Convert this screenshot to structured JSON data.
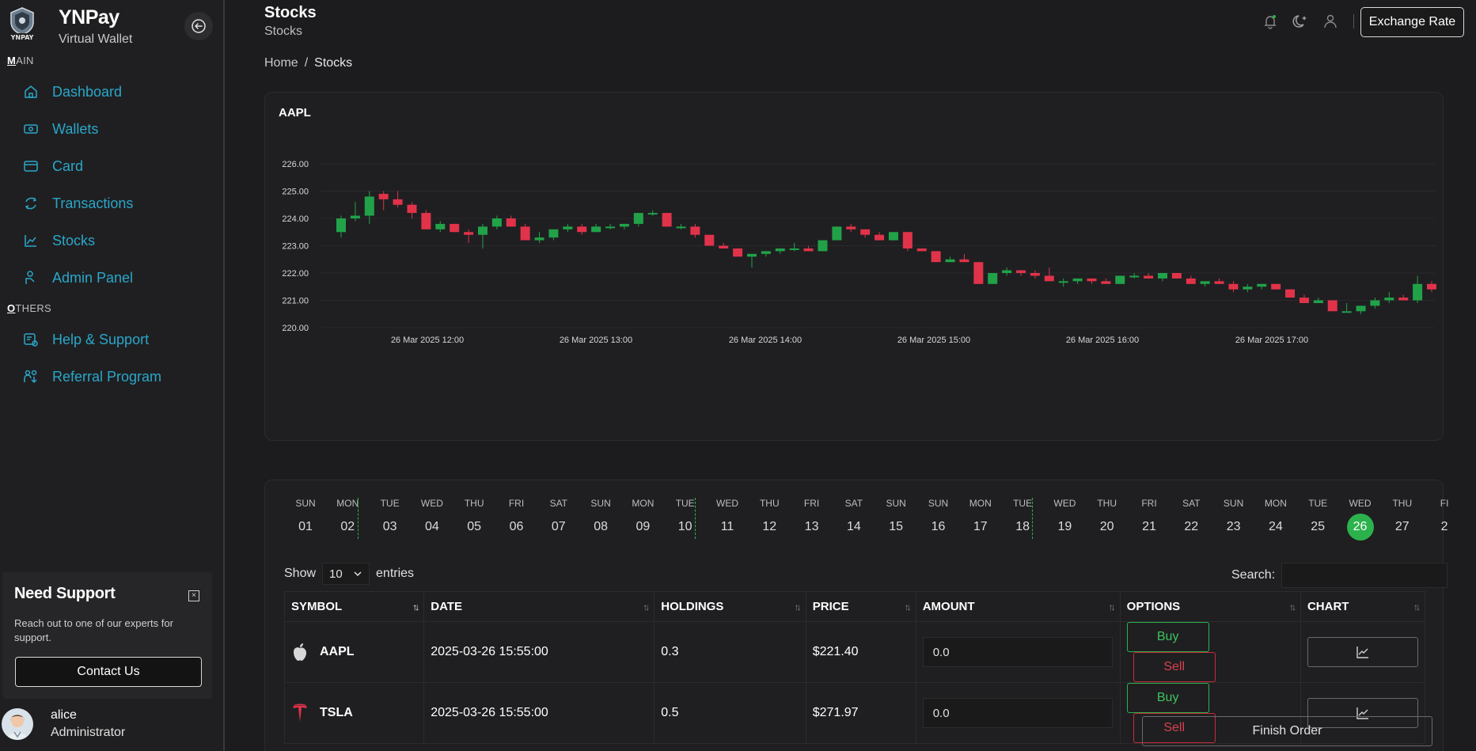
{
  "brand": {
    "name": "YNPay",
    "subtitle": "Virtual Wallet"
  },
  "sidebar": {
    "main_label": "MAIN",
    "others_label": "OTHERS",
    "items": [
      {
        "label": "Dashboard",
        "icon": "home-icon"
      },
      {
        "label": "Wallets",
        "icon": "wallet-icon"
      },
      {
        "label": "Card",
        "icon": "card-icon"
      },
      {
        "label": "Transactions",
        "icon": "transactions-icon"
      },
      {
        "label": "Stocks",
        "icon": "stocks-icon"
      },
      {
        "label": "Admin Panel",
        "icon": "admin-icon"
      }
    ],
    "others": [
      {
        "label": "Help & Support",
        "icon": "help-icon"
      },
      {
        "label": "Referral Program",
        "icon": "referral-icon"
      }
    ],
    "support": {
      "title": "Need Support",
      "text": "Reach out to one of our experts for support.",
      "button": "Contact Us"
    },
    "user": {
      "name": "alice",
      "role": "Administrator"
    }
  },
  "header": {
    "title": "Stocks",
    "subtitle": "Stocks",
    "breadcrumb": [
      "Home",
      "/",
      "Stocks"
    ],
    "exchange_button": "Exchange Rate"
  },
  "chart_data": {
    "type": "candlestick",
    "title": "AAPL",
    "ylim": [
      220,
      226
    ],
    "yticks": [
      "226.00",
      "225.00",
      "224.00",
      "223.00",
      "222.00",
      "221.00",
      "220.00"
    ],
    "xticks": [
      "26 Mar 2025 12:00",
      "26 Mar 2025 13:00",
      "26 Mar 2025 14:00",
      "26 Mar 2025 15:00",
      "26 Mar 2025 16:00",
      "26 Mar 2025 17:00"
    ],
    "up_color": "#21a249",
    "down_color": "#e0334a",
    "candles": [
      [
        223.5,
        224.1,
        223.3,
        224.0
      ],
      [
        224.0,
        224.6,
        223.9,
        224.1
      ],
      [
        224.1,
        225.0,
        223.8,
        224.8
      ],
      [
        224.9,
        225.0,
        224.3,
        224.7
      ],
      [
        224.7,
        225.0,
        224.4,
        224.5
      ],
      [
        224.5,
        224.6,
        224.0,
        224.2
      ],
      [
        224.2,
        224.3,
        223.6,
        223.6
      ],
      [
        223.6,
        223.9,
        223.5,
        223.8
      ],
      [
        223.8,
        223.8,
        223.5,
        223.5
      ],
      [
        223.5,
        223.6,
        223.1,
        223.4
      ],
      [
        223.4,
        223.8,
        222.9,
        223.7
      ],
      [
        223.7,
        224.1,
        223.6,
        224.0
      ],
      [
        224.0,
        224.1,
        223.7,
        223.7
      ],
      [
        223.7,
        223.8,
        223.2,
        223.2
      ],
      [
        223.2,
        223.5,
        223.1,
        223.3
      ],
      [
        223.3,
        223.6,
        223.2,
        223.6
      ],
      [
        223.6,
        223.8,
        223.5,
        223.7
      ],
      [
        223.7,
        223.8,
        223.4,
        223.5
      ],
      [
        223.5,
        223.8,
        223.5,
        223.7
      ],
      [
        223.7,
        223.8,
        223.6,
        223.7
      ],
      [
        223.7,
        223.8,
        223.6,
        223.8
      ],
      [
        223.8,
        224.2,
        223.7,
        224.2
      ],
      [
        224.2,
        224.3,
        224.1,
        224.2
      ],
      [
        224.2,
        224.2,
        223.7,
        223.7
      ],
      [
        223.7,
        223.8,
        223.6,
        223.7
      ],
      [
        223.7,
        223.8,
        223.3,
        223.4
      ],
      [
        223.4,
        223.4,
        223.0,
        223.0
      ],
      [
        223.0,
        223.1,
        222.9,
        222.9
      ],
      [
        222.9,
        222.9,
        222.6,
        222.6
      ],
      [
        222.6,
        222.7,
        222.2,
        222.7
      ],
      [
        222.7,
        222.8,
        222.6,
        222.8
      ],
      [
        222.8,
        222.9,
        222.7,
        222.9
      ],
      [
        222.9,
        223.1,
        222.8,
        222.9
      ],
      [
        222.9,
        223.0,
        222.8,
        222.8
      ],
      [
        222.8,
        223.2,
        222.8,
        223.2
      ],
      [
        223.2,
        223.7,
        223.2,
        223.7
      ],
      [
        223.7,
        223.8,
        223.5,
        223.6
      ],
      [
        223.6,
        223.6,
        223.3,
        223.4
      ],
      [
        223.4,
        223.5,
        223.2,
        223.2
      ],
      [
        223.2,
        223.5,
        223.2,
        223.5
      ],
      [
        223.5,
        223.5,
        222.8,
        222.9
      ],
      [
        222.9,
        222.9,
        222.8,
        222.8
      ],
      [
        222.8,
        222.8,
        222.4,
        222.4
      ],
      [
        222.4,
        222.6,
        222.4,
        222.5
      ],
      [
        222.5,
        222.7,
        222.4,
        222.4
      ],
      [
        222.4,
        222.4,
        221.6,
        221.6
      ],
      [
        221.6,
        222.0,
        221.6,
        222.0
      ],
      [
        222.0,
        222.2,
        221.9,
        222.1
      ],
      [
        222.1,
        222.1,
        221.9,
        222.0
      ],
      [
        222.0,
        222.1,
        221.8,
        221.9
      ],
      [
        221.9,
        222.2,
        221.7,
        221.7
      ],
      [
        221.7,
        221.8,
        221.5,
        221.7
      ],
      [
        221.7,
        221.8,
        221.6,
        221.8
      ],
      [
        221.8,
        221.8,
        221.6,
        221.7
      ],
      [
        221.7,
        221.8,
        221.6,
        221.6
      ],
      [
        221.6,
        221.9,
        221.6,
        221.9
      ],
      [
        221.9,
        222.0,
        221.8,
        221.9
      ],
      [
        221.9,
        222.0,
        221.8,
        221.8
      ],
      [
        221.8,
        222.0,
        221.7,
        222.0
      ],
      [
        222.0,
        222.0,
        221.8,
        221.8
      ],
      [
        221.8,
        221.9,
        221.6,
        221.6
      ],
      [
        221.6,
        221.7,
        221.5,
        221.7
      ],
      [
        221.7,
        221.8,
        221.6,
        221.6
      ],
      [
        221.6,
        221.7,
        221.3,
        221.4
      ],
      [
        221.4,
        221.6,
        221.3,
        221.5
      ],
      [
        221.5,
        221.6,
        221.4,
        221.6
      ],
      [
        221.6,
        221.6,
        221.4,
        221.4
      ],
      [
        221.4,
        221.4,
        221.1,
        221.1
      ],
      [
        221.1,
        221.2,
        220.9,
        220.9
      ],
      [
        220.9,
        221.1,
        220.9,
        221.0
      ],
      [
        221.0,
        221.0,
        220.6,
        220.6
      ],
      [
        220.6,
        220.9,
        220.6,
        220.6
      ],
      [
        220.6,
        220.8,
        220.5,
        220.8
      ],
      [
        220.8,
        221.1,
        220.7,
        221.0
      ],
      [
        221.0,
        221.3,
        220.9,
        221.1
      ],
      [
        221.1,
        221.2,
        221.0,
        221.0
      ],
      [
        221.0,
        221.9,
        220.9,
        221.6
      ],
      [
        221.6,
        221.7,
        221.3,
        221.4
      ]
    ]
  },
  "calendar": {
    "days": [
      {
        "dow": "SUN",
        "num": "01"
      },
      {
        "dow": "MON",
        "num": "02"
      },
      {
        "dow": "TUE",
        "num": "03"
      },
      {
        "dow": "WED",
        "num": "04"
      },
      {
        "dow": "THU",
        "num": "05"
      },
      {
        "dow": "FRI",
        "num": "06"
      },
      {
        "dow": "SAT",
        "num": "07"
      },
      {
        "dow": "SUN",
        "num": "08"
      },
      {
        "dow": "MON",
        "num": "09"
      },
      {
        "dow": "TUE",
        "num": "10"
      },
      {
        "dow": "WED",
        "num": "11"
      },
      {
        "dow": "THU",
        "num": "12"
      },
      {
        "dow": "FRI",
        "num": "13"
      },
      {
        "dow": "SAT",
        "num": "14"
      },
      {
        "dow": "SUN",
        "num": "15"
      },
      {
        "dow": "SUN",
        "num": "16"
      },
      {
        "dow": "MON",
        "num": "17"
      },
      {
        "dow": "TUE",
        "num": "18"
      },
      {
        "dow": "WED",
        "num": "19"
      },
      {
        "dow": "THU",
        "num": "20"
      },
      {
        "dow": "FRI",
        "num": "21"
      },
      {
        "dow": "SAT",
        "num": "22"
      },
      {
        "dow": "SUN",
        "num": "23"
      },
      {
        "dow": "MON",
        "num": "24"
      },
      {
        "dow": "TUE",
        "num": "25"
      },
      {
        "dow": "WED",
        "num": "26"
      },
      {
        "dow": "THU",
        "num": "27"
      },
      {
        "dow": "FI",
        "num": "2"
      }
    ],
    "active": "26",
    "active_color": "#2bb24c"
  },
  "table": {
    "show_label": "Show",
    "entries_value": "10",
    "entries_label": "entries",
    "search_label": "Search:",
    "columns": [
      "SYMBOL",
      "DATE",
      "HOLDINGS",
      "PRICE",
      "AMOUNT",
      "OPTIONS",
      "CHART"
    ],
    "rows": [
      {
        "symbol": "AAPL",
        "date": "2025-03-26 15:55:00",
        "holdings": "0.3",
        "price": "$221.40",
        "amount": "0.0",
        "icon": "apple-logo-icon"
      },
      {
        "symbol": "TSLA",
        "date": "2025-03-26 15:55:00",
        "holdings": "0.5",
        "price": "$271.97",
        "amount": "0.0",
        "icon": "tesla-logo-icon"
      }
    ],
    "buy_label": "Buy",
    "sell_label": "Sell",
    "finish_label": "Finish Order"
  }
}
